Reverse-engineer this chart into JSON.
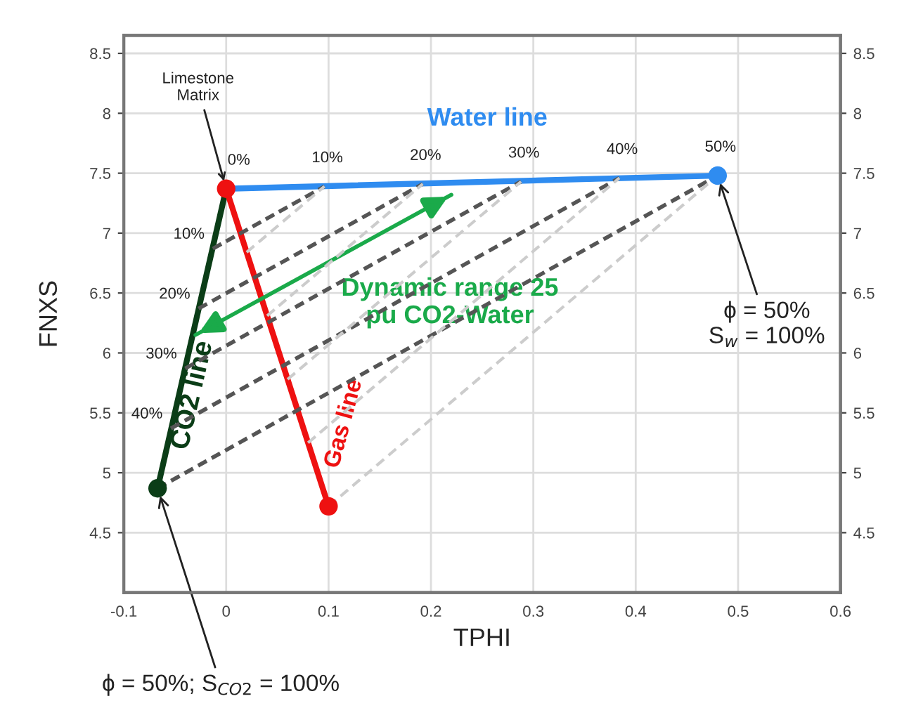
{
  "chart_data": {
    "type": "line",
    "xlabel": "TPHI",
    "ylabel": "FNXS",
    "xlim": [
      -0.1,
      0.6
    ],
    "xticks": [
      -0.1,
      0,
      0.1,
      0.2,
      0.3,
      0.4,
      0.5,
      0.6
    ],
    "ylim": [
      4.0,
      8.65
    ],
    "yticks": [
      4.5,
      5,
      5.5,
      6,
      6.5,
      7,
      7.5,
      8,
      8.5
    ],
    "y2lim": [
      4.0,
      8.65
    ],
    "y2ticks": [
      4.5,
      5,
      5.5,
      6,
      6.5,
      7,
      7.5,
      8,
      8.5
    ],
    "grid": true,
    "marker": "none",
    "series": [
      {
        "name": "Water line",
        "color": "#2f8cf0",
        "line_style": "solid",
        "x": [
          0,
          0.48
        ],
        "values": [
          7.37,
          7.48
        ]
      },
      {
        "name": "CO2 line",
        "color": "#0b3d17",
        "line_style": "solid",
        "x": [
          0,
          -0.067
        ],
        "values": [
          7.37,
          4.87
        ]
      },
      {
        "name": "Gas line",
        "color": "#ee1111",
        "line_style": "solid",
        "x": [
          0,
          0.1
        ],
        "values": [
          7.37,
          4.72
        ]
      },
      {
        "color": "#555555",
        "line_style": "dashed",
        "x": [
          -0.013,
          0.096
        ],
        "values": [
          6.87,
          7.39
        ]
      },
      {
        "color": "#555555",
        "line_style": "dashed",
        "x": [
          -0.027,
          0.192
        ],
        "values": [
          6.37,
          7.41
        ]
      },
      {
        "color": "#555555",
        "line_style": "dashed",
        "x": [
          -0.04,
          0.288
        ],
        "values": [
          5.87,
          7.43
        ]
      },
      {
        "color": "#555555",
        "line_style": "dashed",
        "x": [
          -0.054,
          0.384
        ],
        "values": [
          5.37,
          7.46
        ]
      },
      {
        "color": "#555555",
        "line_style": "dashed",
        "x": [
          -0.067,
          0.48
        ],
        "values": [
          4.87,
          7.48
        ]
      },
      {
        "color": "#cccccc",
        "line_style": "dashed",
        "x": [
          0.02,
          0.096
        ],
        "values": [
          6.84,
          7.39
        ]
      },
      {
        "color": "#cccccc",
        "line_style": "dashed",
        "x": [
          0.04,
          0.192
        ],
        "values": [
          6.31,
          7.41
        ]
      },
      {
        "color": "#cccccc",
        "line_style": "dashed",
        "x": [
          0.06,
          0.288
        ],
        "values": [
          5.78,
          7.43
        ]
      },
      {
        "color": "#cccccc",
        "line_style": "dashed",
        "x": [
          0.08,
          0.384
        ],
        "values": [
          5.25,
          7.46
        ]
      },
      {
        "color": "#cccccc",
        "line_style": "dashed",
        "x": [
          0.1,
          0.48
        ],
        "values": [
          4.72,
          7.48
        ]
      },
      {
        "color": "#1aaa4a",
        "line_style": "solid",
        "x": [
          -0.03,
          0.22
        ],
        "values": [
          6.15,
          7.32
        ]
      },
      {
        "type": "scatter",
        "marker": "circle",
        "x": [
          0,
          0.48,
          -0.067,
          0.1
        ],
        "values": [
          7.37,
          7.48,
          4.87,
          4.72
        ],
        "colors": [
          "#ee1111",
          "#2f8cf0",
          "#0b3d17",
          "#ee1111"
        ]
      }
    ],
    "annotations": [
      {
        "text": "Limestone\nMatrix",
        "x": 0,
        "y": 7.37
      },
      {
        "text": "ϕ = 50%\nS$_{w}$ = 100%",
        "x": 0.48,
        "y": 7.48
      },
      {
        "text": "ϕ = 50%; S$_{CO2}$ = 100%",
        "x": -0.067,
        "y": 4.87
      },
      "Dynamic range 25\npu CO2-Water",
      {
        "text": "0%",
        "x": 0,
        "y": 7.37
      },
      {
        "text": "10%",
        "x": 0.096,
        "y": 7.39
      },
      {
        "text": "20%",
        "x": 0.192,
        "y": 7.41
      },
      {
        "text": "30%",
        "x": 0.288,
        "y": 7.43
      },
      {
        "text": "40%",
        "x": 0.384,
        "y": 7.46
      },
      {
        "text": "50%",
        "x": 0.48,
        "y": 7.48
      },
      {
        "text": "10%",
        "x": -0.013,
        "y": 6.87
      },
      {
        "text": "20%",
        "x": -0.027,
        "y": 6.37
      },
      {
        "text": "30%",
        "x": -0.04,
        "y": 5.87
      },
      {
        "text": "40%",
        "x": -0.054,
        "y": 5.37
      }
    ]
  }
}
